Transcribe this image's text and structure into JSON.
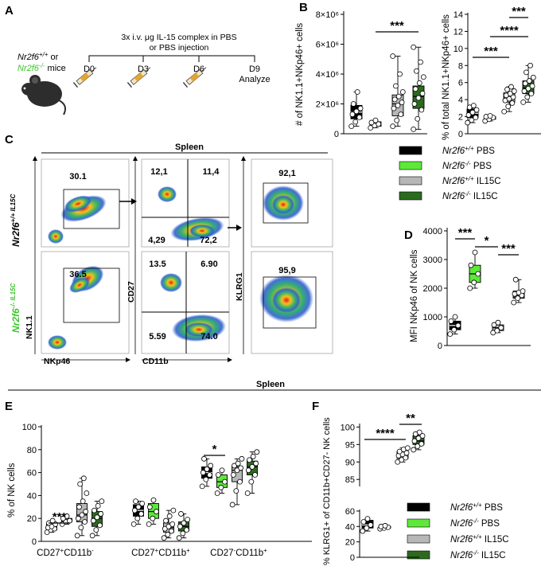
{
  "panel_labels": {
    "A": "A",
    "B": "B",
    "C": "C",
    "D": "D",
    "E": "E",
    "F": "F"
  },
  "panel_a": {
    "title_line1": "3x i.v. μg IL-15 complex in PBS",
    "title_line2": "or PBS injection",
    "mouse_label1": "Nr2f6",
    "mouse_label1_sup": "+/+",
    "mouse_label1_suffix": " or",
    "mouse_label2": "Nr2f6",
    "mouse_label2_sup": "-/-",
    "mouse_label2_suffix": " mice",
    "days": [
      "D0",
      "D3",
      "D6",
      "D9"
    ],
    "analyze": "Analyze"
  },
  "groups": {
    "colors": [
      "#000000",
      "#5ee83a",
      "#b7b7b7",
      "#2b6b1e"
    ],
    "names": [
      "Nr2f6",
      "Nr2f6",
      "Nr2f6",
      "Nr2f6"
    ],
    "sups": [
      "+/+",
      "-/-",
      "+/+",
      "-/-"
    ],
    "treat": [
      " PBS",
      " PBS",
      " IL15C",
      " IL15C"
    ]
  },
  "panel_c": {
    "title": "Spleen",
    "row1_label": "Nr2f6",
    "row1_sup": "+/+ IL15C",
    "row2_label": "Nr2f6",
    "row2_sup": "-/- IL15C",
    "gate_row1": [
      "30.1",
      "12,1",
      "11,4",
      "4,29",
      "72,2",
      "92,1"
    ],
    "gate_row2": [
      "36.5",
      "13.5",
      "6.90",
      "5.59",
      "74.0",
      "95,9"
    ],
    "axis_nk11": "NK1.1",
    "axis_nkp46": "NKp46",
    "axis_cd27": "CD27",
    "axis_cd11b": "CD11b",
    "axis_klrg1": "KLRG1",
    "tick_labels": [
      "10",
      "10",
      "0",
      "-10",
      "10",
      "10",
      "10"
    ]
  },
  "spleen_bottom": "Spleen",
  "chart_data": [
    {
      "type": "box",
      "id": "B-left",
      "ylabel_line1": "# of NK1.1",
      "ylabel": "# of NK1.1+NKp46+ cells",
      "yticks": [
        "0",
        "2×10⁶",
        "4×10⁶",
        "6×10⁶",
        "8×10⁶"
      ],
      "ylim": [
        0,
        8000000
      ],
      "groups": [
        "Nr2f6+/+ PBS",
        "Nr2f6-/- PBS",
        "Nr2f6+/+ IL15C",
        "Nr2f6-/- IL15C"
      ],
      "boxes": [
        {
          "min": 500000,
          "q1": 1000000,
          "median": 1450000,
          "q3": 1900000,
          "max": 2800000,
          "points": [
            500000,
            800000,
            1100000,
            1300000,
            1500000,
            1700000,
            2000000,
            2800000
          ]
        },
        {
          "min": 400000,
          "q1": 500000,
          "median": 650000,
          "q3": 800000,
          "max": 900000,
          "points": [
            400000,
            550000,
            650000,
            750000,
            900000
          ]
        },
        {
          "min": 500000,
          "q1": 1200000,
          "median": 2000000,
          "q3": 2600000,
          "max": 5200000,
          "points": [
            500000,
            900000,
            1300000,
            1700000,
            1900000,
            2100000,
            2300000,
            2500000,
            2800000,
            3200000,
            4000000,
            5200000
          ]
        },
        {
          "min": 300000,
          "q1": 1700000,
          "median": 2500000,
          "q3": 3200000,
          "max": 5800000,
          "points": [
            300000,
            1000000,
            1600000,
            2000000,
            2400000,
            2700000,
            3000000,
            3400000,
            3800000,
            4200000,
            4800000,
            5800000
          ]
        }
      ],
      "significance": [
        {
          "from": 1,
          "to": 3,
          "label": "***"
        }
      ]
    },
    {
      "type": "box",
      "id": "B-right",
      "ylabel": "% of total NK1.1+NKp46+ cells",
      "yticks": [
        "0",
        "2",
        "4",
        "6",
        "8",
        "10",
        "12",
        "14"
      ],
      "ylim": [
        0,
        14
      ],
      "groups": [
        "Nr2f6+/+ PBS",
        "Nr2f6-/- PBS",
        "Nr2f6+/+ IL15C",
        "Nr2f6-/- IL15C"
      ],
      "boxes": [
        {
          "min": 1.3,
          "q1": 1.9,
          "median": 2.4,
          "q3": 2.9,
          "max": 3.3,
          "points": [
            1.3,
            1.6,
            1.9,
            2.2,
            2.5,
            2.8,
            3.1,
            3.3
          ]
        },
        {
          "min": 1.5,
          "q1": 1.7,
          "median": 1.9,
          "q3": 2.0,
          "max": 2.1,
          "points": [
            1.5,
            1.7,
            1.9,
            2.0,
            2.1
          ]
        },
        {
          "min": 2.6,
          "q1": 3.7,
          "median": 4.3,
          "q3": 4.8,
          "max": 5.5,
          "points": [
            2.6,
            3.2,
            3.6,
            3.9,
            4.1,
            4.3,
            4.5,
            4.7,
            5.0,
            5.2,
            5.5
          ]
        },
        {
          "min": 3.7,
          "q1": 4.7,
          "median": 5.4,
          "q3": 6.2,
          "max": 8.0,
          "points": [
            3.7,
            4.3,
            4.7,
            5.0,
            5.3,
            5.6,
            5.9,
            6.2,
            6.6,
            7.2,
            8.0
          ]
        }
      ],
      "significance": [
        {
          "from": 0,
          "to": 2,
          "label": "***"
        },
        {
          "from": 1,
          "to": 3,
          "label": "****"
        },
        {
          "from": 2,
          "to": 3,
          "label": "***"
        }
      ]
    },
    {
      "type": "box",
      "id": "D",
      "ylabel": "MFI NKp46 of NK cells",
      "yticks": [
        "0",
        "1000",
        "2000",
        "3000",
        "4000"
      ],
      "ylim": [
        0,
        4000
      ],
      "groups": [
        "Nr2f6+/+ PBS",
        "Nr2f6-/- PBS",
        "Nr2f6+/+ IL15C",
        "Nr2f6-/- IL15C"
      ],
      "boxes": [
        {
          "min": 400,
          "q1": 550,
          "median": 700,
          "q3": 850,
          "max": 1000,
          "points": [
            400,
            550,
            700,
            850,
            1000
          ]
        },
        {
          "min": 2000,
          "q1": 2200,
          "median": 2500,
          "q3": 2800,
          "max": 3250,
          "points": [
            2000,
            2200,
            2500,
            2800,
            3250
          ]
        },
        {
          "min": 450,
          "q1": 520,
          "median": 620,
          "q3": 720,
          "max": 800,
          "points": [
            450,
            520,
            620,
            720,
            800
          ]
        },
        {
          "min": 1500,
          "q1": 1650,
          "median": 1800,
          "q3": 1900,
          "max": 2300,
          "points": [
            1500,
            1650,
            1750,
            1800,
            1850,
            1900,
            2300
          ]
        }
      ],
      "significance": [
        {
          "from": 0,
          "to": 1,
          "label": "***"
        },
        {
          "from": 1,
          "to": 2,
          "label": "*"
        },
        {
          "from": 2,
          "to": 3,
          "label": "***"
        }
      ]
    },
    {
      "type": "box",
      "id": "E",
      "ylabel": "% of NK cells",
      "yticks": [
        "0",
        "20",
        "40",
        "60",
        "80",
        "100"
      ],
      "ylim": [
        0,
        100
      ],
      "categories": [
        "CD27+CD11b-",
        "CD27+CD11b+",
        "CD27-CD11b+"
      ],
      "category_parts": [
        [
          "CD27",
          "+",
          "CD11b",
          "-"
        ],
        [
          "CD27",
          "+",
          "CD11b",
          "+"
        ],
        [
          "CD27",
          "-",
          "CD11b",
          "+"
        ]
      ],
      "series": [
        {
          "name": "Nr2f6+/+ PBS",
          "boxes": [
            {
              "min": 8,
              "q1": 10,
              "median": 12,
              "q3": 15,
              "max": 18,
              "points": [
                8,
                10,
                11,
                12,
                13,
                15,
                16,
                18
              ]
            },
            {
              "min": 15,
              "q1": 22,
              "median": 27,
              "q3": 32,
              "max": 35,
              "points": [
                15,
                20,
                24,
                27,
                30,
                33,
                35
              ]
            },
            {
              "min": 48,
              "q1": 55,
              "median": 60,
              "q3": 65,
              "max": 72,
              "points": [
                48,
                54,
                58,
                60,
                63,
                66,
                72
              ]
            }
          ]
        },
        {
          "name": "Nr2f6-/- PBS",
          "boxes": [
            {
              "min": 15,
              "q1": 17,
              "median": 18,
              "q3": 20,
              "max": 22,
              "points": [
                15,
                17,
                18,
                20,
                22
              ]
            },
            {
              "min": 15,
              "q1": 20,
              "median": 26,
              "q3": 33,
              "max": 36,
              "points": [
                15,
                20,
                26,
                30,
                36
              ]
            },
            {
              "min": 42,
              "q1": 47,
              "median": 52,
              "q3": 58,
              "max": 62,
              "points": [
                42,
                47,
                52,
                58,
                62
              ]
            }
          ]
        },
        {
          "name": "Nr2f6+/+ IL15C",
          "boxes": [
            {
              "min": 5,
              "q1": 17,
              "median": 23,
              "q3": 33,
              "max": 55,
              "points": [
                5,
                12,
                17,
                20,
                23,
                26,
                30,
                35,
                42,
                50,
                55
              ]
            },
            {
              "min": 3,
              "q1": 8,
              "median": 12,
              "q3": 16,
              "max": 27,
              "points": [
                3,
                6,
                9,
                11,
                13,
                15,
                18,
                22,
                27
              ]
            },
            {
              "min": 32,
              "q1": 52,
              "median": 62,
              "q3": 65,
              "max": 72,
              "points": [
                32,
                44,
                52,
                58,
                62,
                64,
                66,
                68,
                72
              ]
            }
          ]
        },
        {
          "name": "Nr2f6-/- IL15C",
          "boxes": [
            {
              "min": 5,
              "q1": 13,
              "median": 20,
              "q3": 26,
              "max": 35,
              "points": [
                5,
                10,
                14,
                18,
                21,
                24,
                27,
                31,
                35
              ]
            },
            {
              "min": 3,
              "q1": 9,
              "median": 13,
              "q3": 17,
              "max": 24,
              "points": [
                3,
                7,
                10,
                13,
                16,
                19,
                24
              ]
            },
            {
              "min": 42,
              "q1": 58,
              "median": 65,
              "q3": 70,
              "max": 78,
              "points": [
                42,
                52,
                58,
                62,
                65,
                68,
                71,
                74,
                78
              ]
            }
          ]
        }
      ],
      "significance": [
        {
          "category": 0,
          "from": 0,
          "to": 1,
          "label": "***"
        },
        {
          "category": 2,
          "from": 0,
          "to": 1,
          "label": "*"
        }
      ]
    },
    {
      "type": "box",
      "id": "F",
      "ylabel": "% KLRG1+ of CD11b+CD27- NK cells",
      "yticks_upper": [
        "85",
        "90",
        "95",
        "100"
      ],
      "yticks_lower": [
        "0",
        "20",
        "40",
        "60"
      ],
      "ylim_upper": [
        83,
        101
      ],
      "ylim_lower": [
        0,
        62
      ],
      "groups": [
        "Nr2f6+/+ PBS",
        "Nr2f6-/- PBS",
        "Nr2f6+/+ IL15C",
        "Nr2f6-/- IL15C"
      ],
      "boxes": [
        {
          "min": 34,
          "q1": 38,
          "median": 42,
          "q3": 48,
          "max": 50,
          "points": [
            34,
            38,
            42,
            46,
            50
          ]
        },
        {
          "min": 37,
          "q1": 38,
          "median": 39,
          "q3": 40,
          "max": 41,
          "points": [
            37,
            38,
            39,
            40,
            41
          ]
        },
        {
          "min": 90,
          "q1": 91,
          "median": 92,
          "q3": 93,
          "max": 94,
          "points": [
            90,
            90.6,
            91.2,
            91.8,
            92.2,
            92.6,
            93,
            93.6,
            94
          ]
        },
        {
          "min": 93.5,
          "q1": 95,
          "median": 96,
          "q3": 97.5,
          "max": 98.5,
          "points": [
            93.5,
            94.5,
            95.2,
            96,
            96.8,
            97.5,
            98,
            98.5
          ]
        }
      ],
      "significance": [
        {
          "from": 0,
          "to": 2,
          "label": "****"
        },
        {
          "from": 2,
          "to": 3,
          "label": "**"
        }
      ]
    }
  ]
}
